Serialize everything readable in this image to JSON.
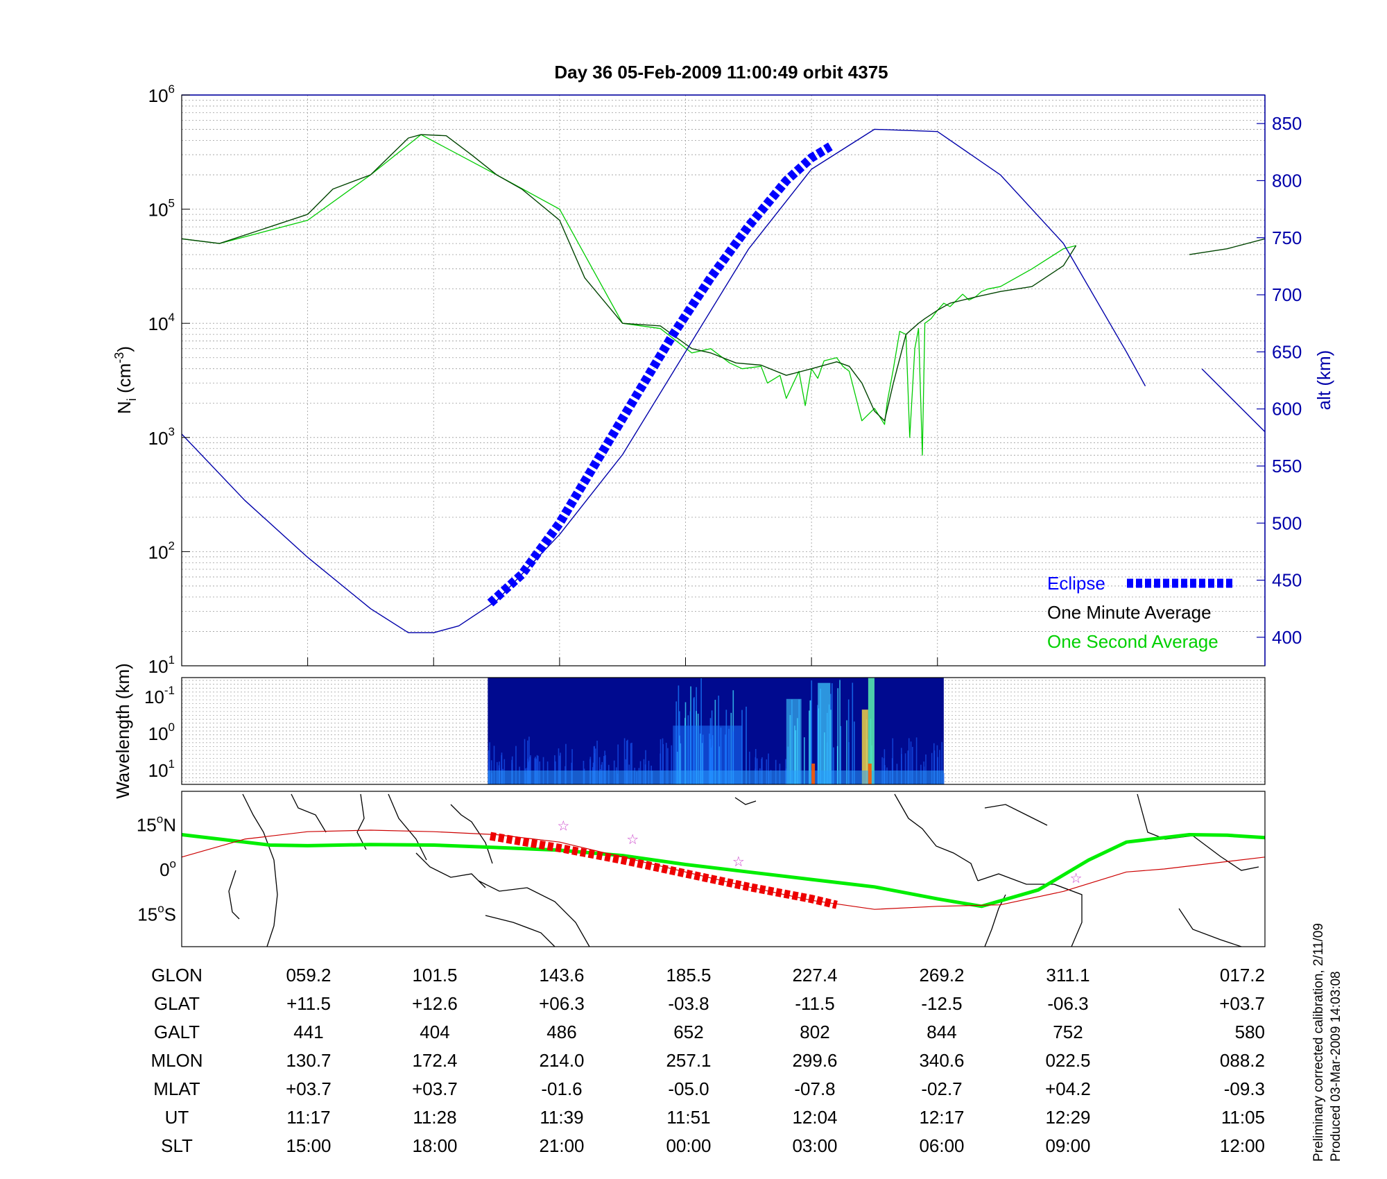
{
  "chart_data": [
    {
      "type": "line",
      "title": "Day 36  05-Feb-2009 11:00:49   orbit 4375",
      "ylabel_base": "N",
      "ylabel_sub": "i",
      "ylabel_unit": " (cm",
      "ylabel_exp": "-3",
      "ylabel_close": ")",
      "y_scale": "log",
      "ylim": [
        10,
        1000000
      ],
      "y_ticks": [
        {
          "base": "10",
          "exp": "1",
          "value": 10
        },
        {
          "base": "10",
          "exp": "2",
          "value": 100
        },
        {
          "base": "10",
          "exp": "3",
          "value": 1000
        },
        {
          "base": "10",
          "exp": "4",
          "value": 10000
        },
        {
          "base": "10",
          "exp": "5",
          "value": 100000
        },
        {
          "base": "10",
          "exp": "6",
          "value": 1000000
        }
      ],
      "y2label": "alt (km)",
      "y2lim": [
        375,
        875
      ],
      "y2_ticks": [
        "400",
        "450",
        "500",
        "550",
        "600",
        "650",
        "700",
        "750",
        "800",
        "850"
      ],
      "xlim": [
        0,
        8.6
      ],
      "grid": true,
      "legend_position": "bottom-right",
      "legend": [
        {
          "label": "Eclipse",
          "color": "#0000ff",
          "style": "thick-dashed"
        },
        {
          "label": "One Minute Average",
          "color": "#000000",
          "style": "solid"
        },
        {
          "label": "One Second Average",
          "color": "#00d000",
          "style": "solid"
        }
      ],
      "series": [
        {
          "name": "One Second Average",
          "color": "#00cc00",
          "x": [
            0,
            0.3,
            1,
            1.5,
            1.9,
            2.5,
            3,
            3.5,
            3.8,
            4.05,
            4.2,
            4.35,
            4.45,
            4.6,
            4.65,
            4.75,
            4.8,
            4.9,
            4.95,
            5.0,
            5.05,
            5.1,
            5.2,
            5.25,
            5.3,
            5.4,
            5.5,
            5.58,
            5.6,
            5.65,
            5.7,
            5.75,
            5.78,
            5.82,
            5.85,
            5.88,
            5.9,
            5.95,
            6.0,
            6.05,
            6.1,
            6.2,
            6.25,
            6.3,
            6.35,
            6.4,
            6.5,
            6.75,
            7.0,
            7.1
          ],
          "y": [
            55000,
            50000,
            80000,
            200000,
            450000,
            200000,
            100000,
            10000,
            9000,
            5500,
            6000,
            4500,
            4000,
            4200,
            3000,
            3500,
            2200,
            3800,
            1900,
            4000,
            3300,
            4700,
            5000,
            4200,
            3800,
            1400,
            1800,
            1300,
            2000,
            4000,
            8500,
            8000,
            1000,
            6000,
            9000,
            700,
            10000,
            11000,
            13000,
            15000,
            14000,
            18000,
            16000,
            17000,
            19000,
            20000,
            21000,
            30000,
            45000,
            48000
          ]
        },
        {
          "name": "One Minute Average",
          "color": "#004400",
          "x": [
            0,
            0.3,
            0.7,
            1,
            1.2,
            1.5,
            1.8,
            1.9,
            2.1,
            2.3,
            2.5,
            2.7,
            3.0,
            3.2,
            3.5,
            3.8,
            4.05,
            4.2,
            4.4,
            4.6,
            4.8,
            5.0,
            5.2,
            5.3,
            5.4,
            5.5,
            5.58,
            5.65,
            5.75,
            5.85,
            5.9,
            6.0,
            6.1,
            6.3,
            6.5,
            6.75,
            7.0,
            7.1
          ],
          "y": [
            55000,
            50000,
            70000,
            90000,
            150000,
            200000,
            420000,
            450000,
            440000,
            300000,
            200000,
            150000,
            80000,
            25000,
            10000,
            9500,
            6000,
            5500,
            4500,
            4300,
            3500,
            4000,
            4600,
            4200,
            3000,
            1700,
            1400,
            3000,
            8000,
            10000,
            11000,
            13000,
            15000,
            17000,
            19000,
            21000,
            32000,
            48000
          ]
        },
        {
          "name": "One Minute Average 2",
          "color": "#004400",
          "x": [
            8.0,
            8.3,
            8.6
          ],
          "y": [
            40000,
            45000,
            55000
          ]
        },
        {
          "name": "alt",
          "axis": "y2",
          "color": "#0000aa",
          "x": [
            0,
            0.5,
            1,
            1.5,
            1.8,
            2.0,
            2.2,
            2.5,
            3.0,
            3.5,
            4.0,
            4.5,
            5.0,
            5.5,
            6.0,
            6.5,
            7.0,
            7.5,
            7.65
          ],
          "y": [
            578,
            520,
            470,
            425,
            404,
            404,
            410,
            432,
            490,
            560,
            650,
            740,
            810,
            845,
            843,
            805,
            745,
            650,
            620
          ]
        },
        {
          "name": "alt 2",
          "axis": "y2",
          "color": "#0000aa",
          "x": [
            8.1,
            8.6
          ],
          "y": [
            635,
            580
          ]
        },
        {
          "name": "Eclipse",
          "axis": "y2",
          "color": "#0000ff",
          "x": [
            2.45,
            2.7,
            3.0,
            3.3,
            3.6,
            3.9,
            4.2,
            4.5,
            4.8,
            5.0,
            5.15
          ],
          "y": [
            430,
            455,
            500,
            555,
            610,
            665,
            715,
            760,
            800,
            820,
            830
          ]
        }
      ]
    },
    {
      "type": "heatmap",
      "ylabel": "Wavelength (km)",
      "y_scale": "log",
      "y_ticks": [
        {
          "base": "10",
          "exp": "-1"
        },
        {
          "base": "10",
          "exp": "0"
        },
        {
          "base": "10",
          "exp": "1"
        }
      ],
      "x_start": 2.43,
      "x_end": 6.05
    },
    {
      "type": "line",
      "y_ticks": [
        {
          "num": "15",
          "deg": "o",
          "hemi": "N",
          "value": 15
        },
        {
          "num": "0",
          "deg": "o",
          "hemi": "",
          "value": 0
        },
        {
          "num": "15",
          "deg": "o",
          "hemi": "S",
          "value": -15
        }
      ],
      "ylim": [
        -26,
        26
      ],
      "series": [
        {
          "name": "track",
          "color": "#00ee00",
          "x": [
            0,
            0.7,
            1,
            1.5,
            2,
            2.5,
            3,
            3.5,
            4,
            4.5,
            5,
            5.5,
            6,
            6.35,
            6.8,
            7.2,
            7.5,
            8,
            8.3,
            8.6
          ],
          "y": [
            11.5,
            8,
            7.8,
            8.2,
            8,
            7.2,
            6.3,
            4.5,
            1.5,
            -1,
            -3.5,
            -6,
            -10,
            -12.5,
            -7,
            3,
            9,
            11.5,
            11.3,
            10.5
          ]
        },
        {
          "name": "magnetic equator",
          "color": "#cc0000",
          "x": [
            0,
            0.5,
            1,
            1.5,
            2,
            2.5,
            3,
            3.5,
            4,
            4.5,
            5,
            5.5,
            6,
            6.5,
            7,
            7.5,
            7.8,
            8.6
          ],
          "y": [
            4,
            10,
            12.5,
            13,
            12.5,
            11.5,
            9,
            4,
            -1,
            -6,
            -10.5,
            -13.5,
            -12.5,
            -12,
            -7.5,
            -1,
            0,
            4
          ]
        },
        {
          "name": "Eclipse track",
          "color": "#ee0000",
          "x": [
            2.45,
            3,
            3.5,
            4,
            4.5,
            5,
            5.2
          ],
          "y": [
            11,
            7,
            3,
            -1.5,
            -6,
            -10,
            -12
          ]
        },
        {
          "name": "stars",
          "color": "#cc44cc",
          "x": [
            3.03,
            3.58,
            4.42,
            7.1
          ],
          "y": [
            14.5,
            10,
            2.5,
            -3
          ]
        }
      ]
    }
  ],
  "table": {
    "rows": [
      {
        "label": "GLON",
        "values": [
          "059.2",
          "101.5",
          "143.6",
          "185.5",
          "227.4",
          "269.2",
          "311.1",
          "017.2"
        ]
      },
      {
        "label": "GLAT",
        "values": [
          "+11.5",
          "+12.6",
          "+06.3",
          "-03.8",
          "-11.5",
          "-12.5",
          "-06.3",
          "+03.7"
        ]
      },
      {
        "label": "GALT",
        "values": [
          "441",
          "404",
          "486",
          "652",
          "802",
          "844",
          "752",
          "580"
        ]
      },
      {
        "label": "MLON",
        "values": [
          "130.7",
          "172.4",
          "214.0",
          "257.1",
          "299.6",
          "340.6",
          "022.5",
          "088.2"
        ]
      },
      {
        "label": "MLAT",
        "values": [
          "+03.7",
          "+03.7",
          "-01.6",
          "-05.0",
          "-07.8",
          "-02.7",
          "+04.2",
          "-09.3"
        ]
      },
      {
        "label": "UT",
        "values": [
          "11:17",
          "11:28",
          "11:39",
          "11:51",
          "12:04",
          "12:17",
          "12:29",
          "11:05"
        ]
      },
      {
        "label": "SLT",
        "values": [
          "15:00",
          "18:00",
          "21:00",
          "00:00",
          "03:00",
          "06:00",
          "09:00",
          "12:00"
        ]
      }
    ]
  },
  "footer": {
    "line1": "Preliminary corrected calibration, 2/11/09",
    "line2": "Produced 03-Mar-2009 14:03:08"
  },
  "colors": {
    "axis_blue": "#0000aa",
    "eclipse": "#0000ff",
    "green": "#00cc00",
    "red": "#ee0000"
  }
}
